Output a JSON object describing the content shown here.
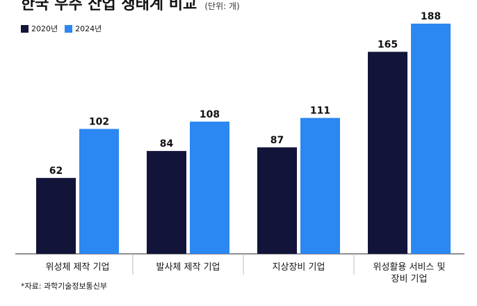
{
  "header": {
    "title": "한국 우주 산업 생태계 비교",
    "unit": "(단위: 개)"
  },
  "source": "*자료: 과학기술정보통신부",
  "colors": {
    "series_2020": "#121539",
    "series_2024": "#2b87f2"
  },
  "chart_data": {
    "type": "bar",
    "title": "한국 우주 산업 생태계 비교",
    "unit": "(단위: 개)",
    "categories": [
      [
        "위성체 제작 기업"
      ],
      [
        "발사체 제작 기업"
      ],
      [
        "지상장비 기업"
      ],
      [
        "위성활용 서비스 및",
        "장비 기업"
      ]
    ],
    "series": [
      {
        "name": "2020년",
        "values": [
          62,
          84,
          87,
          165
        ]
      },
      {
        "name": "2024년",
        "values": [
          102,
          108,
          111,
          188
        ]
      }
    ],
    "xlabel": "",
    "ylabel": "",
    "ylim": [
      0,
      188
    ],
    "grid": false,
    "legend": "top-left",
    "data_labels": true
  }
}
